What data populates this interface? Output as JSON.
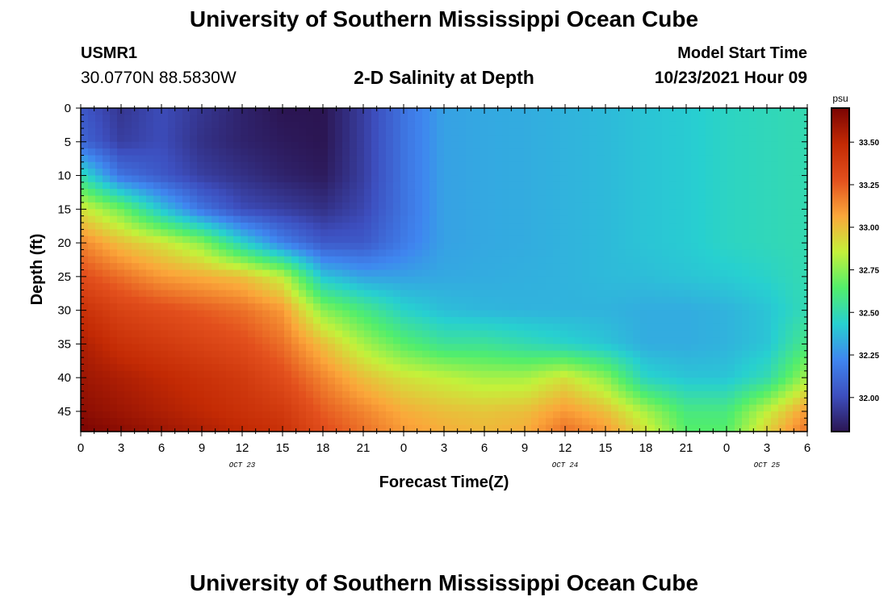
{
  "header": {
    "title": "University of Southern Mississippi Ocean Cube",
    "station_id": "USMR1",
    "station_coords": "30.0770N  88.5830W",
    "plot_title": "2-D Salinity at Depth",
    "start_label": "Model Start Time",
    "start_value": "10/23/2021 Hour 09"
  },
  "footer": {
    "title": "University of Southern Mississippi Ocean Cube"
  },
  "chart_data": {
    "type": "heatmap",
    "title": "2-D Salinity at Depth",
    "xlabel": "Forecast Time(Z)",
    "ylabel": "Depth (ft)",
    "x_tick_labels": [
      "0",
      "3",
      "6",
      "9",
      "12",
      "15",
      "18",
      "21",
      "0",
      "3",
      "6",
      "9",
      "12",
      "15",
      "18",
      "21",
      "0",
      "3",
      "6"
    ],
    "x_day_labels": [
      {
        "label": "OCT 23",
        "at_tick": 4
      },
      {
        "label": "OCT 24",
        "at_tick": 12
      },
      {
        "label": "OCT 25",
        "at_tick": 17
      }
    ],
    "x_hours_range": [
      0,
      54
    ],
    "y_tick_labels": [
      "0",
      "5",
      "10",
      "15",
      "20",
      "25",
      "30",
      "35",
      "40",
      "45"
    ],
    "ylim": [
      0,
      48
    ],
    "y_inverted": true,
    "colorbar": {
      "units": "psu",
      "min": 31.8,
      "max": 33.7,
      "tick_values": [
        32.0,
        32.25,
        32.5,
        32.75,
        33.0,
        33.25,
        33.5
      ],
      "tick_labels": [
        "32.00",
        "32.25",
        "32.50",
        "32.75",
        "33.00",
        "33.25",
        "33.50"
      ],
      "colors": [
        "#2b1552",
        "#3d4fbf",
        "#3f86f0",
        "#27d0d0",
        "#52ee6b",
        "#c4f13a",
        "#fba73a",
        "#e3501d",
        "#c32a04",
        "#7a0403"
      ]
    },
    "field": {
      "x_hours": [
        0,
        3,
        6,
        9,
        12,
        15,
        18,
        21,
        24,
        27,
        30,
        33,
        36,
        39,
        42,
        45,
        48,
        51,
        54
      ],
      "depth_ft": [
        0,
        5,
        10,
        15,
        20,
        25,
        30,
        35,
        40,
        45,
        48
      ],
      "salinity": [
        [
          32.05,
          31.92,
          32.0,
          31.92,
          31.85,
          31.8,
          31.8,
          31.95,
          32.15,
          32.3,
          32.32,
          32.33,
          32.35,
          32.37,
          32.4,
          32.42,
          32.46,
          32.48,
          32.5
        ],
        [
          32.1,
          31.95,
          32.0,
          31.9,
          31.85,
          31.82,
          31.8,
          31.95,
          32.15,
          32.3,
          32.32,
          32.33,
          32.35,
          32.37,
          32.4,
          32.42,
          32.46,
          32.48,
          32.5
        ],
        [
          32.5,
          32.15,
          32.05,
          31.95,
          31.9,
          31.85,
          31.82,
          31.95,
          32.15,
          32.3,
          32.32,
          32.33,
          32.35,
          32.37,
          32.4,
          32.42,
          32.46,
          32.48,
          32.5
        ],
        [
          32.9,
          32.7,
          32.4,
          32.15,
          32.0,
          31.95,
          31.9,
          31.98,
          32.15,
          32.3,
          32.32,
          32.33,
          32.35,
          32.37,
          32.4,
          32.42,
          32.46,
          32.48,
          32.5
        ],
        [
          33.15,
          33.0,
          32.9,
          32.75,
          32.45,
          32.2,
          32.05,
          32.05,
          32.18,
          32.3,
          32.32,
          32.33,
          32.35,
          32.37,
          32.4,
          32.42,
          32.46,
          32.48,
          32.5
        ],
        [
          33.3,
          33.2,
          33.1,
          33.05,
          33.0,
          32.85,
          32.4,
          32.3,
          32.3,
          32.32,
          32.33,
          32.34,
          32.35,
          32.37,
          32.38,
          32.4,
          32.42,
          32.45,
          32.5
        ],
        [
          33.45,
          33.35,
          33.3,
          33.25,
          33.2,
          33.1,
          32.75,
          32.6,
          32.45,
          32.38,
          32.36,
          32.35,
          32.35,
          32.35,
          32.33,
          32.33,
          32.35,
          32.4,
          32.5
        ],
        [
          33.55,
          33.45,
          33.4,
          33.35,
          33.3,
          33.2,
          33.0,
          32.8,
          32.65,
          32.55,
          32.55,
          32.5,
          32.45,
          32.4,
          32.33,
          32.33,
          32.35,
          32.4,
          32.6
        ],
        [
          33.6,
          33.55,
          33.5,
          33.45,
          33.4,
          33.3,
          33.15,
          33.0,
          32.9,
          32.85,
          32.8,
          32.8,
          32.9,
          32.75,
          32.45,
          32.4,
          32.4,
          32.5,
          32.8
        ],
        [
          33.65,
          33.6,
          33.55,
          33.5,
          33.45,
          33.4,
          33.25,
          33.15,
          33.05,
          33.0,
          32.98,
          33.0,
          33.1,
          33.0,
          32.8,
          32.6,
          32.6,
          32.85,
          33.1
        ],
        [
          33.7,
          33.65,
          33.6,
          33.55,
          33.5,
          33.45,
          33.3,
          33.2,
          33.1,
          33.05,
          33.02,
          33.05,
          33.2,
          33.1,
          32.9,
          32.65,
          32.65,
          32.95,
          33.2
        ]
      ]
    }
  }
}
